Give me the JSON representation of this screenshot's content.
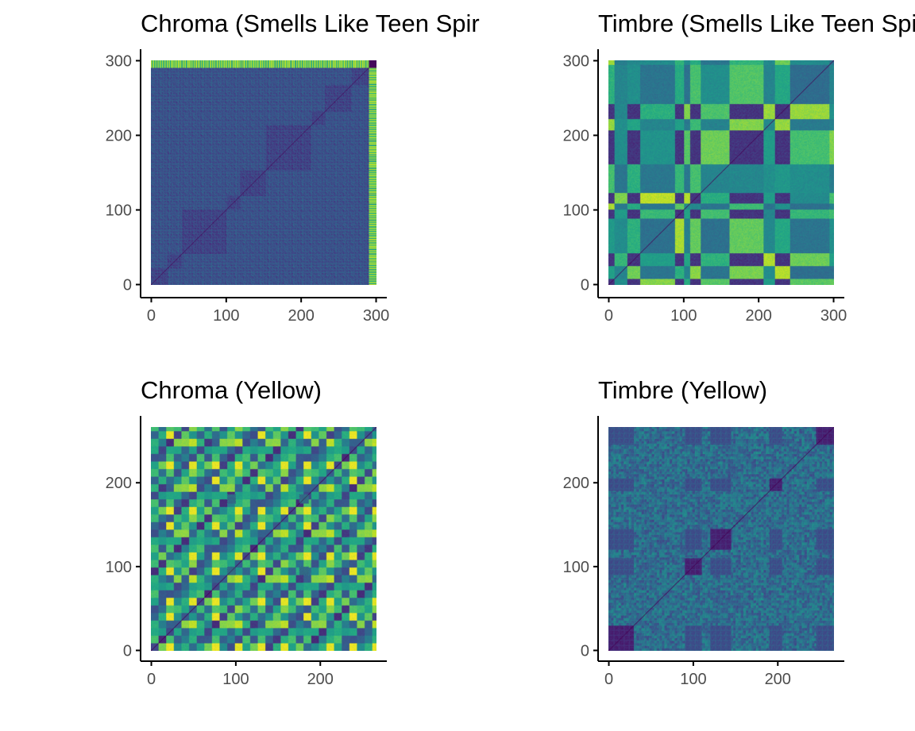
{
  "figure": {
    "colors": {
      "axis": "#000000",
      "tick_label": "#4d4d4d",
      "background": "#ffffff"
    },
    "colormap": "viridis"
  },
  "chart_data": [
    {
      "type": "heatmap",
      "title": "Chroma (Smells Like Teen Spir",
      "xlim": [
        0,
        300
      ],
      "ylim": [
        0,
        300
      ],
      "x_ticks": [
        0,
        100,
        200,
        300
      ],
      "y_ticks": [
        0,
        100,
        200,
        300
      ],
      "x_tick_labels": [
        "0",
        "100",
        "200",
        "300"
      ],
      "y_tick_labels": [
        "0",
        "100",
        "200",
        "300"
      ],
      "grid": false,
      "matrix_size": 298,
      "value_range": [
        0,
        1
      ],
      "section_boundaries": [
        22,
        41,
        100,
        118,
        152,
        212,
        230,
        265
      ],
      "notes": "self-similarity matrix, mostly dark purple with bright yellow stripes at last rows/columns (~288-298)"
    },
    {
      "type": "heatmap",
      "title": "Timbre (Smells Like Teen Spirit)",
      "xlim": [
        0,
        300
      ],
      "ylim": [
        0,
        300
      ],
      "x_ticks": [
        0,
        100,
        200,
        300
      ],
      "y_ticks": [
        0,
        100,
        200,
        300
      ],
      "x_tick_labels": [
        "0",
        "100",
        "200",
        "300"
      ],
      "y_tick_labels": [
        "0",
        "100",
        "200",
        "300"
      ],
      "grid": false,
      "matrix_size": 298,
      "value_range": [
        0,
        1
      ],
      "section_boundaries": [
        8,
        25,
        42,
        88,
        100,
        108,
        122,
        160,
        205,
        220,
        240,
        292
      ],
      "notes": "self-similarity matrix with strong block structure, bright yellow at section crossings"
    },
    {
      "type": "heatmap",
      "title": "Chroma (Yellow)",
      "xlim": [
        0,
        266
      ],
      "ylim": [
        0,
        266
      ],
      "x_ticks": [
        0,
        100,
        200
      ],
      "y_ticks": [
        0,
        100,
        200
      ],
      "x_tick_labels": [
        "0",
        "100",
        "200"
      ],
      "y_tick_labels": [
        "0",
        "100",
        "200"
      ],
      "grid": false,
      "matrix_size": 266,
      "value_range": [
        0,
        1
      ],
      "section_boundaries": [
        90,
        100,
        175,
        186
      ],
      "notes": "checkerboard pattern of teal/yellow/purple blocks with dark diagonal"
    },
    {
      "type": "heatmap",
      "title": "Timbre (Yellow)",
      "xlim": [
        0,
        266
      ],
      "ylim": [
        0,
        266
      ],
      "x_ticks": [
        0,
        100,
        200
      ],
      "y_ticks": [
        0,
        100,
        200
      ],
      "x_tick_labels": [
        "0",
        "100",
        "200"
      ],
      "y_tick_labels": [
        "0",
        "100",
        "200"
      ],
      "grid": false,
      "matrix_size": 266,
      "value_range": [
        0,
        1
      ],
      "section_boundaries": [
        30,
        90,
        110,
        120,
        145,
        190,
        205,
        245
      ],
      "notes": "mostly dark purple with teal striping, dark blocks along diagonal"
    }
  ]
}
